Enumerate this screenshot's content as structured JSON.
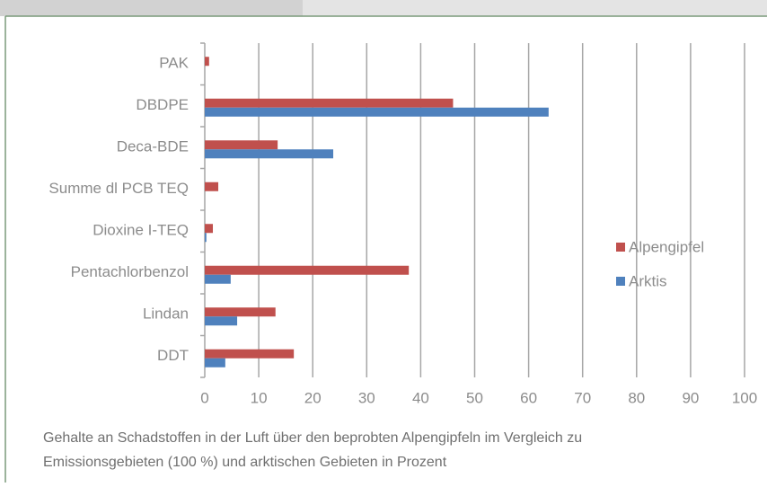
{
  "chart_data": {
    "type": "hbar",
    "categories": [
      "PAK",
      "DBDPE",
      "Deca-BDE",
      "Summe dl PCB TEQ",
      "Dioxine I-TEQ",
      "Pentachlorbenzol",
      "Lindan",
      "DDT"
    ],
    "series": [
      {
        "name": "Alpengipfel",
        "color": "#c0504d",
        "values": [
          0.8,
          46,
          13.5,
          2.5,
          1.5,
          37.8,
          13.1,
          16.5
        ]
      },
      {
        "name": "Arktis",
        "color": "#4f81bd",
        "values": [
          null,
          63.7,
          23.8,
          null,
          0.3,
          4.8,
          6,
          3.8
        ]
      }
    ],
    "xlim": [
      0,
      100
    ],
    "xticks": [
      0,
      10,
      20,
      30,
      40,
      50,
      60,
      70,
      80,
      90,
      100
    ],
    "grid": true,
    "legend": "right",
    "caption": "Gehalte an Schadstoffen in der Luft über den beprobten Alpengipfeln im Vergleich zu Emissionsgebieten (100 %) und arktischen Gebieten in Prozent"
  }
}
